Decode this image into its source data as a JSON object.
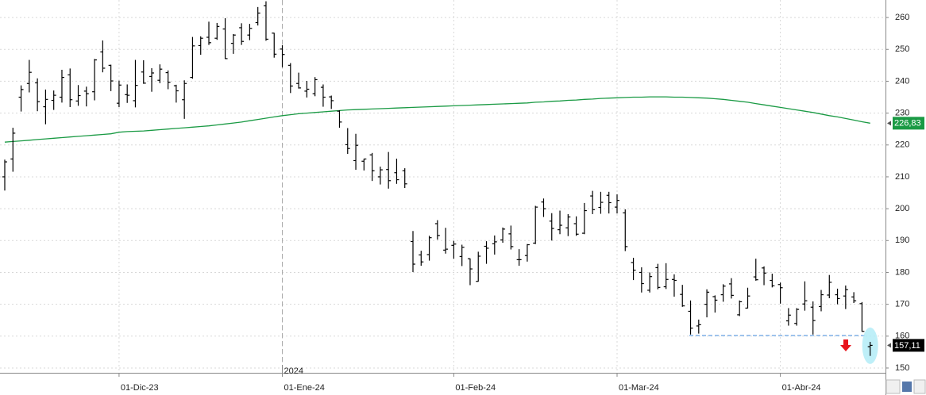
{
  "chart_data": {
    "type": "ohlc",
    "categories": [
      null,
      null,
      null,
      null,
      null,
      null,
      null,
      null,
      null,
      null,
      null,
      null,
      null,
      null,
      "01-Dic-23",
      null,
      null,
      null,
      null,
      null,
      null,
      null,
      null,
      null,
      null,
      null,
      null,
      null,
      null,
      null,
      null,
      null,
      null,
      null,
      "01-Ene-24",
      null,
      null,
      null,
      null,
      null,
      null,
      null,
      null,
      null,
      null,
      null,
      null,
      null,
      null,
      null,
      null,
      null,
      null,
      null,
      null,
      "01-Feb-24",
      null,
      null,
      null,
      null,
      null,
      null,
      null,
      null,
      null,
      null,
      null,
      null,
      null,
      null,
      null,
      null,
      null,
      null,
      null,
      "01-Mar-24",
      null,
      null,
      null,
      null,
      null,
      null,
      null,
      null,
      null,
      null,
      null,
      null,
      null,
      null,
      null,
      null,
      null,
      null,
      null,
      "01-Abr-24",
      null,
      null,
      null,
      null,
      null,
      null,
      null,
      null,
      null,
      null,
      null
    ],
    "year_label": "2024",
    "ohlc": [
      {
        "open": 210.0,
        "high": 215.4,
        "low": 205.7,
        "close": 214.7
      },
      {
        "open": 215.6,
        "high": 225.4,
        "low": 211.6,
        "close": 223.7
      },
      {
        "open": 235.0,
        "high": 238.7,
        "low": 230.5,
        "close": 237.4
      },
      {
        "open": 239.3,
        "high": 246.7,
        "low": 236.5,
        "close": 242.8
      },
      {
        "open": 239.5,
        "high": 240.9,
        "low": 230.6,
        "close": 233.6
      },
      {
        "open": 232.0,
        "high": 237.4,
        "low": 226.5,
        "close": 234.3
      },
      {
        "open": 234.0,
        "high": 237.1,
        "low": 231.0,
        "close": 235.6
      },
      {
        "open": 235.0,
        "high": 243.6,
        "low": 233.3,
        "close": 241.2
      },
      {
        "open": 242.0,
        "high": 244.0,
        "low": 231.9,
        "close": 234.2
      },
      {
        "open": 233.8,
        "high": 238.8,
        "low": 232.3,
        "close": 235.5
      },
      {
        "open": 236.9,
        "high": 238.3,
        "low": 232.1,
        "close": 236.1
      },
      {
        "open": 236.7,
        "high": 247.0,
        "low": 234.0,
        "close": 246.7
      },
      {
        "open": 249.2,
        "high": 252.8,
        "low": 242.8,
        "close": 244.1
      },
      {
        "open": 245.0,
        "high": 245.2,
        "low": 236.9,
        "close": 240.1
      },
      {
        "open": 233.1,
        "high": 240.2,
        "low": 231.9,
        "close": 238.8
      },
      {
        "open": 235.8,
        "high": 239.0,
        "low": 233.2,
        "close": 235.6
      },
      {
        "open": 233.9,
        "high": 246.7,
        "low": 231.8,
        "close": 238.7
      },
      {
        "open": 242.9,
        "high": 246.6,
        "low": 239.2,
        "close": 239.4
      },
      {
        "open": 241.5,
        "high": 244.1,
        "low": 236.7,
        "close": 242.6
      },
      {
        "open": 240.3,
        "high": 245.3,
        "low": 239.4,
        "close": 243.8
      },
      {
        "open": 242.7,
        "high": 243.4,
        "low": 237.5,
        "close": 239.7
      },
      {
        "open": 238.6,
        "high": 238.9,
        "low": 233.3,
        "close": 237.0
      },
      {
        "open": 234.2,
        "high": 240.3,
        "low": 228.2,
        "close": 239.3
      },
      {
        "open": 241.2,
        "high": 253.9,
        "low": 240.8,
        "close": 251.1
      },
      {
        "open": 251.2,
        "high": 254.1,
        "low": 248.3,
        "close": 253.5
      },
      {
        "open": 253.8,
        "high": 258.7,
        "low": 251.4,
        "close": 252.1
      },
      {
        "open": 253.5,
        "high": 258.3,
        "low": 253.0,
        "close": 257.2
      },
      {
        "open": 256.4,
        "high": 259.8,
        "low": 247.0,
        "close": 247.1
      },
      {
        "open": 251.9,
        "high": 254.8,
        "low": 248.6,
        "close": 254.5
      },
      {
        "open": 256.8,
        "high": 258.2,
        "low": 251.4,
        "close": 252.5
      },
      {
        "open": 254.5,
        "high": 258.0,
        "low": 252.9,
        "close": 256.6
      },
      {
        "open": 258.4,
        "high": 263.3,
        "low": 257.5,
        "close": 261.4
      },
      {
        "open": 263.7,
        "high": 265.1,
        "low": 252.7,
        "close": 253.2
      },
      {
        "open": 255.1,
        "high": 255.2,
        "low": 247.4,
        "close": 248.5
      },
      {
        "open": 250.1,
        "high": 251.3,
        "low": 244.4,
        "close": 248.4
      },
      {
        "open": 245.0,
        "high": 245.7,
        "low": 236.3,
        "close": 238.5
      },
      {
        "open": 239.3,
        "high": 242.7,
        "low": 237.7,
        "close": 237.9
      },
      {
        "open": 236.9,
        "high": 240.1,
        "low": 234.9,
        "close": 237.5
      },
      {
        "open": 236.1,
        "high": 241.3,
        "low": 235.3,
        "close": 240.5
      },
      {
        "open": 238.1,
        "high": 239.0,
        "low": 232.0,
        "close": 235.0
      },
      {
        "open": 235.1,
        "high": 235.5,
        "low": 231.3,
        "close": 233.9
      },
      {
        "open": 230.6,
        "high": 230.9,
        "low": 225.4,
        "close": 227.2
      },
      {
        "open": 220.1,
        "high": 225.3,
        "low": 217.2,
        "close": 218.9
      },
      {
        "open": 215.1,
        "high": 223.5,
        "low": 212.2,
        "close": 219.9
      },
      {
        "open": 214.9,
        "high": 215.7,
        "low": 212.0,
        "close": 215.6
      },
      {
        "open": 216.9,
        "high": 217.5,
        "low": 208.7,
        "close": 211.9
      },
      {
        "open": 210.0,
        "high": 213.2,
        "low": 207.6,
        "close": 212.2
      },
      {
        "open": 212.3,
        "high": 217.8,
        "low": 206.3,
        "close": 208.8
      },
      {
        "open": 211.3,
        "high": 215.7,
        "low": 207.8,
        "close": 209.1
      },
      {
        "open": 211.9,
        "high": 212.7,
        "low": 206.5,
        "close": 207.8
      },
      {
        "open": 189.7,
        "high": 193.0,
        "low": 180.1,
        "close": 182.6
      },
      {
        "open": 185.5,
        "high": 186.8,
        "low": 182.1,
        "close": 183.3
      },
      {
        "open": 185.6,
        "high": 191.5,
        "low": 183.7,
        "close": 190.9
      },
      {
        "open": 195.3,
        "high": 196.4,
        "low": 190.3,
        "close": 191.6
      },
      {
        "open": 187.0,
        "high": 194.0,
        "low": 185.9,
        "close": 187.3
      },
      {
        "open": 188.5,
        "high": 189.9,
        "low": 184.3,
        "close": 188.9
      },
      {
        "open": 185.0,
        "high": 188.7,
        "low": 182.0,
        "close": 187.9
      },
      {
        "open": 184.3,
        "high": 184.4,
        "low": 176.0,
        "close": 181.1
      },
      {
        "open": 177.2,
        "high": 186.5,
        "low": 177.1,
        "close": 185.1
      },
      {
        "open": 188.2,
        "high": 189.8,
        "low": 182.7,
        "close": 187.6
      },
      {
        "open": 189.0,
        "high": 191.6,
        "low": 185.6,
        "close": 189.6
      },
      {
        "open": 190.2,
        "high": 194.1,
        "low": 189.3,
        "close": 193.6
      },
      {
        "open": 192.1,
        "high": 194.7,
        "low": 187.2,
        "close": 188.1
      },
      {
        "open": 184.0,
        "high": 187.3,
        "low": 182.1,
        "close": 184.0
      },
      {
        "open": 185.3,
        "high": 188.9,
        "low": 183.4,
        "close": 188.7
      },
      {
        "open": 189.2,
        "high": 200.9,
        "low": 188.9,
        "close": 200.5
      },
      {
        "open": 202.1,
        "high": 203.2,
        "low": 197.4,
        "close": 200.0
      },
      {
        "open": 196.1,
        "high": 198.6,
        "low": 190.0,
        "close": 193.8
      },
      {
        "open": 193.4,
        "high": 199.4,
        "low": 192.0,
        "close": 194.8
      },
      {
        "open": 194.0,
        "high": 198.3,
        "low": 191.4,
        "close": 197.4
      },
      {
        "open": 195.3,
        "high": 197.6,
        "low": 191.5,
        "close": 192.0
      },
      {
        "open": 192.3,
        "high": 201.8,
        "low": 192.0,
        "close": 199.4
      },
      {
        "open": 204.0,
        "high": 205.6,
        "low": 198.3,
        "close": 199.7
      },
      {
        "open": 200.4,
        "high": 205.3,
        "low": 198.4,
        "close": 202.0
      },
      {
        "open": 204.2,
        "high": 205.3,
        "low": 198.5,
        "close": 201.9
      },
      {
        "open": 200.5,
        "high": 204.5,
        "low": 198.5,
        "close": 202.6
      },
      {
        "open": 198.7,
        "high": 199.8,
        "low": 186.7,
        "close": 188.1
      },
      {
        "open": 183.1,
        "high": 184.6,
        "low": 177.6,
        "close": 180.7
      },
      {
        "open": 180.0,
        "high": 181.6,
        "low": 173.7,
        "close": 176.5
      },
      {
        "open": 174.4,
        "high": 180.0,
        "low": 173.7,
        "close": 178.7
      },
      {
        "open": 181.5,
        "high": 182.7,
        "low": 174.7,
        "close": 175.3
      },
      {
        "open": 175.5,
        "high": 182.9,
        "low": 174.8,
        "close": 177.8
      },
      {
        "open": 177.8,
        "high": 179.4,
        "low": 172.4,
        "close": 177.5
      },
      {
        "open": 173.1,
        "high": 176.1,
        "low": 169.2,
        "close": 169.5
      },
      {
        "open": 167.8,
        "high": 171.2,
        "low": 160.5,
        "close": 162.5
      },
      {
        "open": 163.2,
        "high": 165.2,
        "low": 160.8,
        "close": 163.6
      },
      {
        "open": 170.0,
        "high": 174.7,
        "low": 165.9,
        "close": 173.8
      },
      {
        "open": 172.4,
        "high": 172.8,
        "low": 167.4,
        "close": 171.3
      },
      {
        "open": 173.0,
        "high": 176.3,
        "low": 170.8,
        "close": 175.7
      },
      {
        "open": 176.4,
        "high": 178.2,
        "low": 171.8,
        "close": 172.8
      },
      {
        "open": 166.7,
        "high": 171.2,
        "low": 166.3,
        "close": 170.8
      },
      {
        "open": 168.8,
        "high": 175.2,
        "low": 168.7,
        "close": 172.6
      },
      {
        "open": 178.6,
        "high": 184.3,
        "low": 177.4,
        "close": 177.7
      },
      {
        "open": 181.4,
        "high": 181.9,
        "low": 176.0,
        "close": 179.8
      },
      {
        "open": 177.5,
        "high": 179.6,
        "low": 175.3,
        "close": 175.8
      },
      {
        "open": 176.2,
        "high": 176.8,
        "low": 170.2,
        "close": 175.2
      },
      {
        "open": 164.8,
        "high": 168.8,
        "low": 163.3,
        "close": 166.6
      },
      {
        "open": 164.0,
        "high": 168.8,
        "low": 163.3,
        "close": 168.4
      },
      {
        "open": 170.1,
        "high": 177.2,
        "low": 168.0,
        "close": 171.1
      },
      {
        "open": 169.1,
        "high": 170.9,
        "low": 160.5,
        "close": 164.9
      },
      {
        "open": 169.3,
        "high": 174.5,
        "low": 167.8,
        "close": 173.0
      },
      {
        "open": 172.9,
        "high": 179.2,
        "low": 171.9,
        "close": 176.9
      },
      {
        "open": 173.0,
        "high": 174.9,
        "low": 170.0,
        "close": 171.8
      },
      {
        "open": 172.6,
        "high": 175.9,
        "low": 168.5,
        "close": 174.6
      },
      {
        "open": 172.3,
        "high": 173.8,
        "low": 170.4,
        "close": 171.1
      },
      {
        "open": 170.2,
        "high": 170.7,
        "low": 161.4,
        "close": 161.5
      },
      {
        "open": 156.7,
        "high": 158.2,
        "low": 153.8,
        "close": 157.11
      }
    ],
    "bar_color": "#000000",
    "sma_color": "#1a9a44",
    "sma_values": [
      220.9,
      221.1,
      221.3,
      221.5,
      221.7,
      221.9,
      222.1,
      222.3,
      222.5,
      222.7,
      222.9,
      223.1,
      223.3,
      223.5,
      224.0,
      224.2,
      224.3,
      224.4,
      224.6,
      224.8,
      225.0,
      225.2,
      225.4,
      225.6,
      225.8,
      226.0,
      226.3,
      226.6,
      226.9,
      227.2,
      227.6,
      228.0,
      228.4,
      228.8,
      229.2,
      229.5,
      229.8,
      230.0,
      230.2,
      230.4,
      230.6,
      230.8,
      231.0,
      231.1,
      231.2,
      231.3,
      231.4,
      231.5,
      231.6,
      231.7,
      231.8,
      231.9,
      232.0,
      232.1,
      232.2,
      232.3,
      232.4,
      232.5,
      232.6,
      232.7,
      232.8,
      232.9,
      233.0,
      233.1,
      233.2,
      233.4,
      233.5,
      233.7,
      233.8,
      234.0,
      234.1,
      234.3,
      234.4,
      234.6,
      234.7,
      234.8,
      234.9,
      235.0,
      235.0,
      235.1,
      235.1,
      235.1,
      235.0,
      235.0,
      234.9,
      234.8,
      234.7,
      234.5,
      234.3,
      234.0,
      233.7,
      233.4,
      233.0,
      232.6,
      232.2,
      231.8,
      231.4,
      231.0,
      230.6,
      230.2,
      229.7,
      229.2,
      228.8,
      228.3,
      227.8,
      227.3,
      226.83
    ],
    "last_price": {
      "value": 157.11,
      "label": "157,11"
    },
    "sma_last": {
      "value": 226.83,
      "label": "226,83"
    },
    "support_level": 160.2,
    "ylim": [
      148.5,
      265.5
    ],
    "yticks": [
      150,
      160,
      170,
      180,
      190,
      200,
      210,
      220,
      230,
      240,
      250,
      260
    ],
    "grid": true
  }
}
